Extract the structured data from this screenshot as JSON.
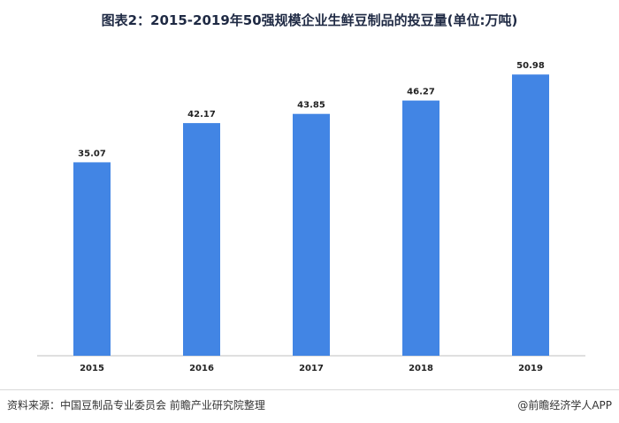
{
  "title": "图表2：2015-2019年50强规模企业生鲜豆制品的投豆量(单位:万吨)",
  "chart_data": {
    "type": "bar",
    "categories": [
      "2015",
      "2016",
      "2017",
      "2018",
      "2019"
    ],
    "values": [
      35.07,
      42.17,
      43.85,
      46.27,
      50.98
    ],
    "value_labels": [
      "35.07",
      "42.17",
      "43.85",
      "46.27",
      "50.98"
    ],
    "ylim": [
      0,
      60
    ],
    "grid": false,
    "bar_color": "#4285e4"
  },
  "footer": {
    "source": "资料来源：中国豆制品专业委员会 前瞻产业研究院整理",
    "brand": "@前瞻经济学人APP"
  }
}
